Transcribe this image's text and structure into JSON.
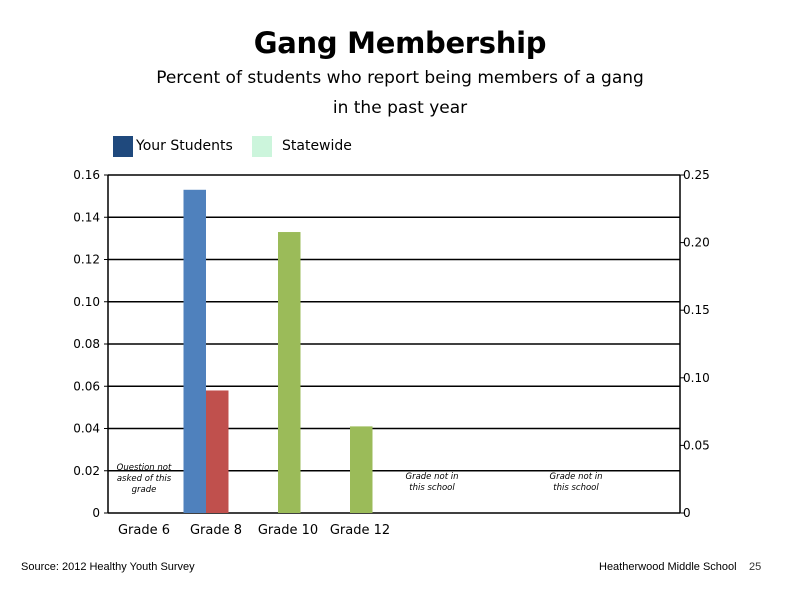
{
  "title": "Gang Membership",
  "subtitle_lines": [
    "Percent of students who report being members of a gang",
    "in the past year"
  ],
  "legend": [
    {
      "label": "Your Students",
      "color": "#1f497d"
    },
    {
      "label": "Statewide",
      "color": "#ccf5dc"
    }
  ],
  "chart_data": {
    "type": "bar",
    "title": "Gang Membership",
    "categories": [
      "Grade 6",
      "Grade 8",
      "Grade 10",
      "Grade 12"
    ],
    "left_axis": {
      "ylim": [
        0,
        0.16
      ],
      "ticks": [
        "0",
        "0.02",
        "0.04",
        "0.06",
        "0.08",
        "0.10",
        "0.12",
        "0.14",
        "0.16"
      ]
    },
    "right_axis": {
      "ylim": [
        0,
        0.25
      ],
      "ticks": [
        "0",
        "0.05",
        "0.10",
        "0.15",
        "0.20",
        "0.25"
      ]
    },
    "bars": [
      {
        "category": "Grade 8",
        "slot": 0,
        "value": 0.153,
        "color": "#4f81bd"
      },
      {
        "category": "Grade 8",
        "slot": 1,
        "value": 0.058,
        "color": "#c0504d"
      },
      {
        "category": "Grade 10",
        "slot": 1,
        "value": 0.133,
        "color": "#9bbb59"
      },
      {
        "category": "Grade 12",
        "slot": 1,
        "value": 0.041,
        "color": "#9bbb59"
      }
    ],
    "annotations": [
      {
        "lines": [
          "Question not",
          "asked of this",
          "grade"
        ],
        "category_slot": 0
      },
      {
        "lines": [
          "Grade not in",
          "this school"
        ],
        "category_slot": 4
      },
      {
        "lines": [
          "Grade not in",
          "this school"
        ],
        "category_slot": 6
      }
    ],
    "grid": true
  },
  "footer": {
    "source": "Source: 2012 Healthy Youth Survey",
    "school": "Heatherwood Middle  School",
    "page": "25"
  }
}
